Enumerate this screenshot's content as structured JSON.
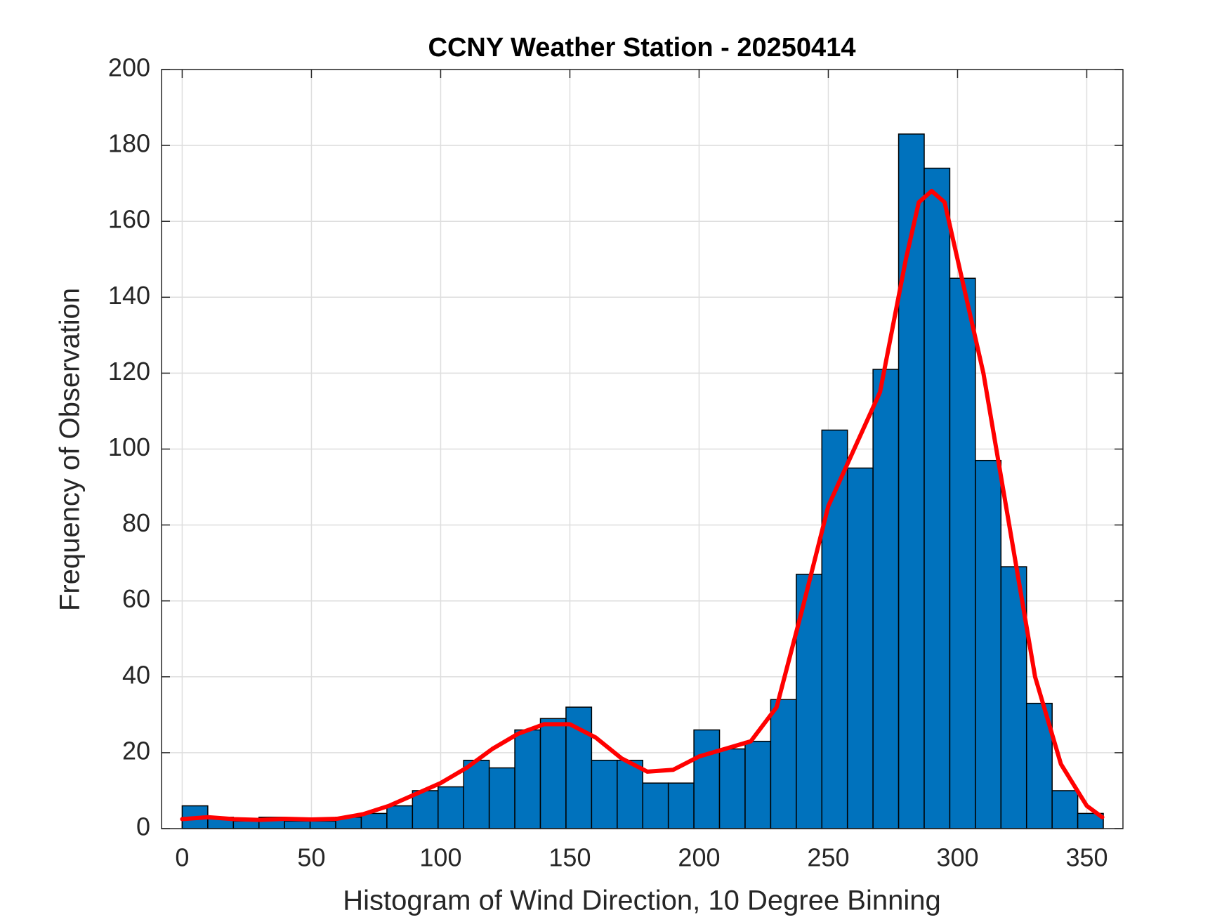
{
  "chart_data": {
    "type": "histogram",
    "title": "CCNY Weather Station - 20250414",
    "xlabel": "Histogram of Wind Direction, 10 Degree Binning",
    "ylabel": "Frequency of Observation",
    "bins": [
      0,
      9.9,
      19.8,
      29.7,
      39.6,
      49.5,
      59.4,
      69.3,
      79.2,
      89.1,
      99,
      108.9,
      118.8,
      128.7,
      138.6,
      148.5,
      158.4,
      168.3,
      178.2,
      188.1,
      198,
      207.9,
      217.8,
      227.7,
      237.6,
      247.5,
      257.4,
      267.3,
      277.2,
      287.1,
      297,
      306.9,
      316.8,
      326.7,
      336.6,
      346.5,
      356.4
    ],
    "counts": [
      6,
      3,
      2,
      3,
      2,
      2,
      3,
      4,
      6,
      10,
      11,
      18,
      16,
      26,
      29,
      32,
      18,
      18,
      12,
      12,
      26,
      21,
      23,
      34,
      67,
      105,
      95,
      121,
      183,
      174,
      145,
      97,
      69,
      33,
      10,
      4
    ],
    "color": "#0072bd",
    "curve": {
      "color": "#ff0000",
      "x": [
        0,
        10,
        20,
        30,
        40,
        50,
        60,
        70,
        80,
        90,
        100,
        110,
        120,
        130,
        140,
        150,
        160,
        170,
        180,
        190,
        200,
        210,
        220,
        230,
        240,
        250,
        260,
        270,
        280,
        285,
        290,
        295,
        300,
        310,
        320,
        330,
        340,
        350,
        356
      ],
      "y": [
        2.5,
        3,
        2.5,
        2.3,
        2.6,
        2.4,
        2.6,
        3.8,
        6,
        9,
        12,
        16,
        21,
        25,
        27.5,
        27.5,
        24,
        18.5,
        15,
        15.5,
        19,
        21,
        23,
        32,
        58,
        85,
        100,
        115,
        150,
        165,
        168,
        165,
        150,
        120,
        80,
        40,
        17,
        6,
        3
      ]
    },
    "xlim": [
      -8,
      364
    ],
    "xticks": [
      0,
      50,
      100,
      150,
      200,
      250,
      300,
      350
    ],
    "ylim": [
      0,
      200
    ],
    "yticks": [
      0,
      20,
      40,
      60,
      80,
      100,
      120,
      140,
      160,
      180,
      200
    ],
    "grid": true
  }
}
